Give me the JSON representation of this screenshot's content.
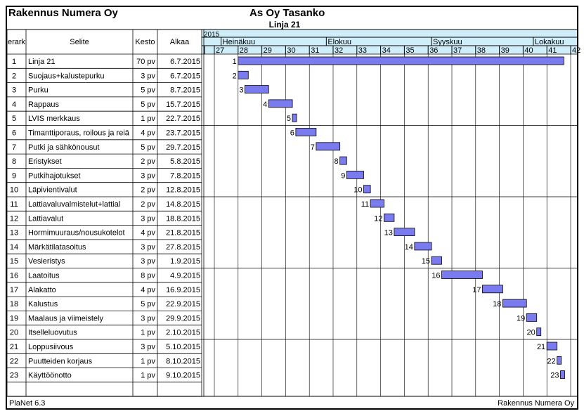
{
  "header": {
    "company": "Rakennus Numera Oy",
    "project": "As Oy Tasanko",
    "subtitle": "Linja 21"
  },
  "footer": {
    "left": "PlaNet 6.3",
    "right": "Rakennus Numera Oy"
  },
  "table": {
    "columns": [
      "erark",
      "Selite",
      "Kesto",
      "Alkaa"
    ]
  },
  "timeline": {
    "year": "2015",
    "months": [
      "Heinäkuu",
      "Elokuu",
      "Syyskuu",
      "Lokakuu"
    ],
    "weeks": [
      "27",
      "28",
      "29",
      "30",
      "31",
      "32",
      "33",
      "34",
      "35",
      "36",
      "37",
      "38",
      "39",
      "40",
      "41",
      "42"
    ]
  },
  "colors": {
    "bar": "#7b7bf0",
    "header_bg": "#cfeefa",
    "grid": "#000000"
  },
  "chart_data": {
    "type": "gantt",
    "tasks": [
      {
        "id": 1,
        "name": "Linja 21",
        "duration": "70 pv",
        "start": "6.7.2015",
        "start_date": "2015-07-06",
        "working_days": 70
      },
      {
        "id": 2,
        "name": "Suojaus+kalustepurku",
        "duration": "3 pv",
        "start": "6.7.2015",
        "start_date": "2015-07-06",
        "working_days": 3
      },
      {
        "id": 3,
        "name": "Purku",
        "duration": "5 pv",
        "start": "8.7.2015",
        "start_date": "2015-07-08",
        "working_days": 5
      },
      {
        "id": 4,
        "name": "Rappaus",
        "duration": "5 pv",
        "start": "15.7.2015",
        "start_date": "2015-07-15",
        "working_days": 5
      },
      {
        "id": 5,
        "name": "LVIS merkkaus",
        "duration": "1 pv",
        "start": "22.7.2015",
        "start_date": "2015-07-22",
        "working_days": 1
      },
      {
        "id": 6,
        "name": "Timanttiporaus, roilous ja reiä",
        "duration": "4 pv",
        "start": "23.7.2015",
        "start_date": "2015-07-23",
        "working_days": 4
      },
      {
        "id": 7,
        "name": "Putki ja sähkönousut",
        "duration": "5 pv",
        "start": "29.7.2015",
        "start_date": "2015-07-29",
        "working_days": 5
      },
      {
        "id": 8,
        "name": "Eristykset",
        "duration": "2 pv",
        "start": "5.8.2015",
        "start_date": "2015-08-05",
        "working_days": 2
      },
      {
        "id": 9,
        "name": "Putkihajotukset",
        "duration": "3 pv",
        "start": "7.8.2015",
        "start_date": "2015-08-07",
        "working_days": 3
      },
      {
        "id": 10,
        "name": "Läpivientivalut",
        "duration": "2 pv",
        "start": "12.8.2015",
        "start_date": "2015-08-12",
        "working_days": 2
      },
      {
        "id": 11,
        "name": "Lattiavaluvalmistelut+lattial",
        "duration": "2 pv",
        "start": "14.8.2015",
        "start_date": "2015-08-14",
        "working_days": 2
      },
      {
        "id": 12,
        "name": "Lattiavalut",
        "duration": "3 pv",
        "start": "18.8.2015",
        "start_date": "2015-08-18",
        "working_days": 3
      },
      {
        "id": 13,
        "name": "Hormimuuraus/nousukotelot",
        "duration": "4 pv",
        "start": "21.8.2015",
        "start_date": "2015-08-21",
        "working_days": 4
      },
      {
        "id": 14,
        "name": "Märkätilatasoitus",
        "duration": "3 pv",
        "start": "27.8.2015",
        "start_date": "2015-08-27",
        "working_days": 3
      },
      {
        "id": 15,
        "name": "Vesieristys",
        "duration": "3 pv",
        "start": "1.9.2015",
        "start_date": "2015-09-01",
        "working_days": 3
      },
      {
        "id": 16,
        "name": "Laatoitus",
        "duration": "8 pv",
        "start": "4.9.2015",
        "start_date": "2015-09-04",
        "working_days": 8
      },
      {
        "id": 17,
        "name": "Alakatto",
        "duration": "4 pv",
        "start": "16.9.2015",
        "start_date": "2015-09-16",
        "working_days": 4
      },
      {
        "id": 18,
        "name": "Kalustus",
        "duration": "5 pv",
        "start": "22.9.2015",
        "start_date": "2015-09-22",
        "working_days": 5
      },
      {
        "id": 19,
        "name": "Maalaus ja viimeistely",
        "duration": "3 pv",
        "start": "29.9.2015",
        "start_date": "2015-09-29",
        "working_days": 3
      },
      {
        "id": 20,
        "name": "Itselleluovutus",
        "duration": "1 pv",
        "start": "2.10.2015",
        "start_date": "2015-10-02",
        "working_days": 1
      },
      {
        "id": 21,
        "name": "Loppusiivous",
        "duration": "3 pv",
        "start": "5.10.2015",
        "start_date": "2015-10-05",
        "working_days": 3
      },
      {
        "id": 22,
        "name": "Puutteiden korjaus",
        "duration": "1 pv",
        "start": "8.10.2015",
        "start_date": "2015-10-08",
        "working_days": 1
      },
      {
        "id": 23,
        "name": "Käyttöönotto",
        "duration": "1 pv",
        "start": "9.10.2015",
        "start_date": "2015-10-09",
        "working_days": 1
      }
    ]
  }
}
